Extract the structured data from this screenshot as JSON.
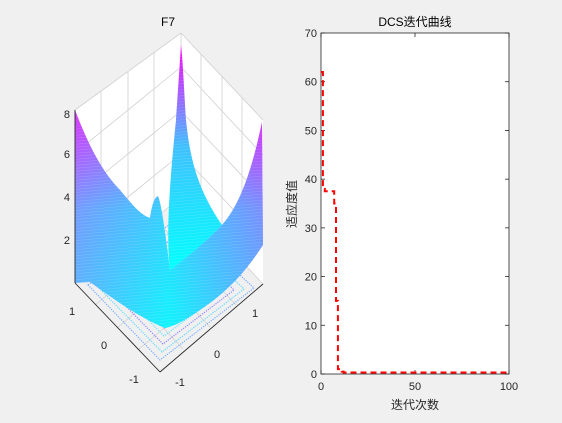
{
  "window": {
    "background": "#f0f0f0"
  },
  "chart_data": [
    {
      "type": "surface3d",
      "title": "F7",
      "xlabel": "",
      "ylabel": "",
      "zlabel": "",
      "xlim": [
        -1,
        1
      ],
      "ylim": [
        -1,
        1
      ],
      "zlim": [
        0,
        8
      ],
      "xticks": [
        "-1",
        "0",
        "1"
      ],
      "yticks": [
        "-1",
        "0",
        "1"
      ],
      "zticks": [
        "2",
        "4",
        "6",
        "8"
      ],
      "colormap": [
        "#00ffff",
        "#ff00ff"
      ],
      "surface_heights_sample": {
        "corner_back": 8.7,
        "corner_left": 8.4,
        "corner_right": 8.0,
        "center_min": 1.4,
        "mid_ridge_peak": 5.0
      },
      "contour_projection": true,
      "grid": true
    },
    {
      "type": "line",
      "title": "DCS迭代曲线",
      "xlabel": "迭代次数",
      "ylabel": "适应度值",
      "xlim": [
        0,
        100
      ],
      "ylim": [
        0,
        70
      ],
      "xticks": [
        "0",
        "50",
        "100"
      ],
      "yticks": [
        "0",
        "10",
        "20",
        "30",
        "40",
        "50",
        "60",
        "70"
      ],
      "grid": false,
      "series": [
        {
          "color": "#ff0000",
          "style": "dashed",
          "x": [
            0,
            1,
            1,
            2,
            2,
            7,
            7,
            8,
            8,
            9,
            9,
            11,
            11,
            12,
            12,
            100
          ],
          "y": [
            62,
            62,
            38,
            38,
            37.5,
            37.5,
            35,
            35,
            15,
            15,
            1,
            1,
            0.5,
            0.5,
            0.3,
            0.3
          ]
        }
      ]
    }
  ]
}
